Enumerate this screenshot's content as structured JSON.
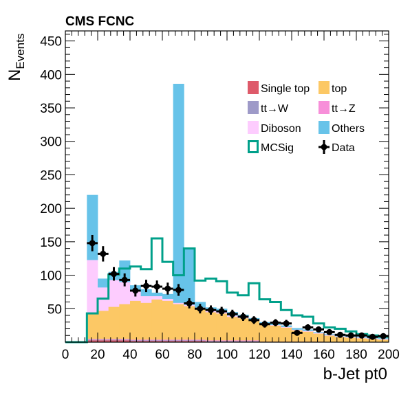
{
  "chart_data": {
    "type": "bar",
    "title": "CMS FCNC",
    "xlabel": "b-Jet pt0",
    "ylabel": "N",
    "ylabel_sub": "Events",
    "xlim": [
      0,
      200
    ],
    "ylim": [
      0,
      465
    ],
    "xticks": [
      0,
      20,
      40,
      60,
      80,
      100,
      120,
      140,
      160,
      180,
      200
    ],
    "xtick_labels": [
      "0",
      "20",
      "40",
      "60",
      "80",
      "100",
      "120",
      "140",
      "160",
      "180",
      "200"
    ],
    "yticks": [
      50,
      100,
      150,
      200,
      250,
      300,
      350,
      400,
      450
    ],
    "ytick_labels": [
      "50",
      "100",
      "150",
      "200",
      "250",
      "300",
      "350",
      "400",
      "450"
    ],
    "bins": [
      [
        13.33,
        20
      ],
      [
        20,
        26.67
      ],
      [
        26.67,
        33.33
      ],
      [
        33.33,
        40
      ],
      [
        40,
        46.67
      ],
      [
        46.67,
        53.33
      ],
      [
        53.33,
        60
      ],
      [
        60,
        66.67
      ],
      [
        66.67,
        73.33
      ],
      [
        73.33,
        80
      ],
      [
        80,
        86.67
      ],
      [
        86.67,
        93.33
      ],
      [
        93.33,
        100
      ],
      [
        100,
        106.67
      ],
      [
        106.67,
        113.33
      ],
      [
        113.33,
        120
      ],
      [
        120,
        126.67
      ],
      [
        126.67,
        133.33
      ],
      [
        133.33,
        140
      ],
      [
        140,
        146.67
      ],
      [
        146.67,
        153.33
      ],
      [
        153.33,
        160
      ],
      [
        160,
        166.67
      ],
      [
        166.67,
        173.33
      ],
      [
        173.33,
        180
      ],
      [
        180,
        186.67
      ],
      [
        186.67,
        193.33
      ],
      [
        193.33,
        200
      ]
    ],
    "stack": [
      {
        "name": "Single top",
        "color": "#de5a6a",
        "values": [
          3,
          3,
          3,
          3,
          2,
          2,
          2,
          2,
          2,
          2,
          2,
          1,
          1,
          1,
          1,
          1,
          1,
          1,
          1,
          1,
          1,
          1,
          0,
          0,
          0,
          0,
          0,
          0
        ]
      },
      {
        "name": "tt→W",
        "color": "#9e9ac8",
        "values": [
          1,
          1,
          1,
          1,
          1,
          1,
          1,
          1,
          1,
          1,
          1,
          1,
          1,
          1,
          1,
          1,
          0,
          0,
          0,
          0,
          0,
          0,
          0,
          0,
          0,
          0,
          0,
          0
        ]
      },
      {
        "name": "tt→Z",
        "color": "#f78fd9",
        "values": [
          1,
          1,
          1,
          1,
          1,
          1,
          1,
          1,
          1,
          1,
          1,
          1,
          1,
          1,
          1,
          1,
          0,
          0,
          0,
          0,
          0,
          0,
          0,
          0,
          0,
          0,
          0,
          0
        ]
      },
      {
        "name": "top",
        "color": "#fcc865",
        "values": [
          38,
          42,
          48,
          52,
          58,
          55,
          60,
          58,
          53,
          50,
          46,
          42,
          40,
          35,
          33,
          30,
          26,
          24,
          21,
          17,
          15,
          12,
          10,
          8,
          7,
          6,
          5,
          4
        ]
      },
      {
        "name": "Diboson",
        "color": "#fdccfe",
        "values": [
          80,
          35,
          40,
          33,
          15,
          10,
          5,
          3,
          2,
          2,
          2,
          2,
          2,
          2,
          2,
          1,
          1,
          1,
          1,
          1,
          1,
          1,
          1,
          1,
          1,
          1,
          1,
          1
        ]
      },
      {
        "name": "Others",
        "color": "#67c3e9",
        "values": [
          97,
          13,
          12,
          32,
          8,
          10,
          5,
          7,
          327,
          85,
          8,
          5,
          5,
          5,
          3,
          2,
          2,
          2,
          2,
          2,
          2,
          1,
          1,
          1,
          1,
          1,
          1,
          1
        ]
      }
    ],
    "signal": {
      "name": "MCSig",
      "color": "#00a08a",
      "values": [
        43,
        65,
        101,
        110,
        113,
        109,
        155,
        120,
        100,
        140,
        92,
        95,
        91,
        74,
        70,
        88,
        64,
        60,
        48,
        40,
        38,
        28,
        22,
        20,
        16,
        12,
        10,
        8
      ]
    },
    "data": {
      "name": "Data",
      "color": "#000000",
      "x": [
        16.67,
        23.33,
        30,
        36.67,
        43.33,
        50,
        56.67,
        63.33,
        70,
        76.67,
        83.33,
        90,
        96.67,
        103.33,
        110,
        116.67,
        123.33,
        130,
        136.67,
        143.33,
        150,
        156.67,
        163.33,
        170,
        176.67,
        183.33,
        190,
        196.67
      ],
      "y": [
        148,
        132,
        102,
        93,
        77,
        84,
        83,
        80,
        78,
        58,
        50,
        48,
        46,
        42,
        38,
        33,
        27,
        29,
        28,
        14,
        22,
        19,
        15,
        11,
        10,
        10,
        8,
        9
      ]
    },
    "legend": {
      "placement": "top-right",
      "entries": [
        {
          "label": "Single top",
          "kind": "fill",
          "color": "#de5a6a"
        },
        {
          "label": "top",
          "kind": "fill",
          "color": "#fcc865"
        },
        {
          "label": "tt→W",
          "kind": "fill",
          "color": "#9e9ac8"
        },
        {
          "label": "tt→Z",
          "kind": "fill",
          "color": "#f78fd9"
        },
        {
          "label": "Diboson",
          "kind": "fill",
          "color": "#fdccfe"
        },
        {
          "label": "Others",
          "kind": "fill",
          "color": "#67c3e9"
        },
        {
          "label": "MCSig",
          "kind": "line",
          "color": "#00a08a"
        },
        {
          "label": "Data",
          "kind": "marker",
          "color": "#000000"
        }
      ]
    }
  }
}
